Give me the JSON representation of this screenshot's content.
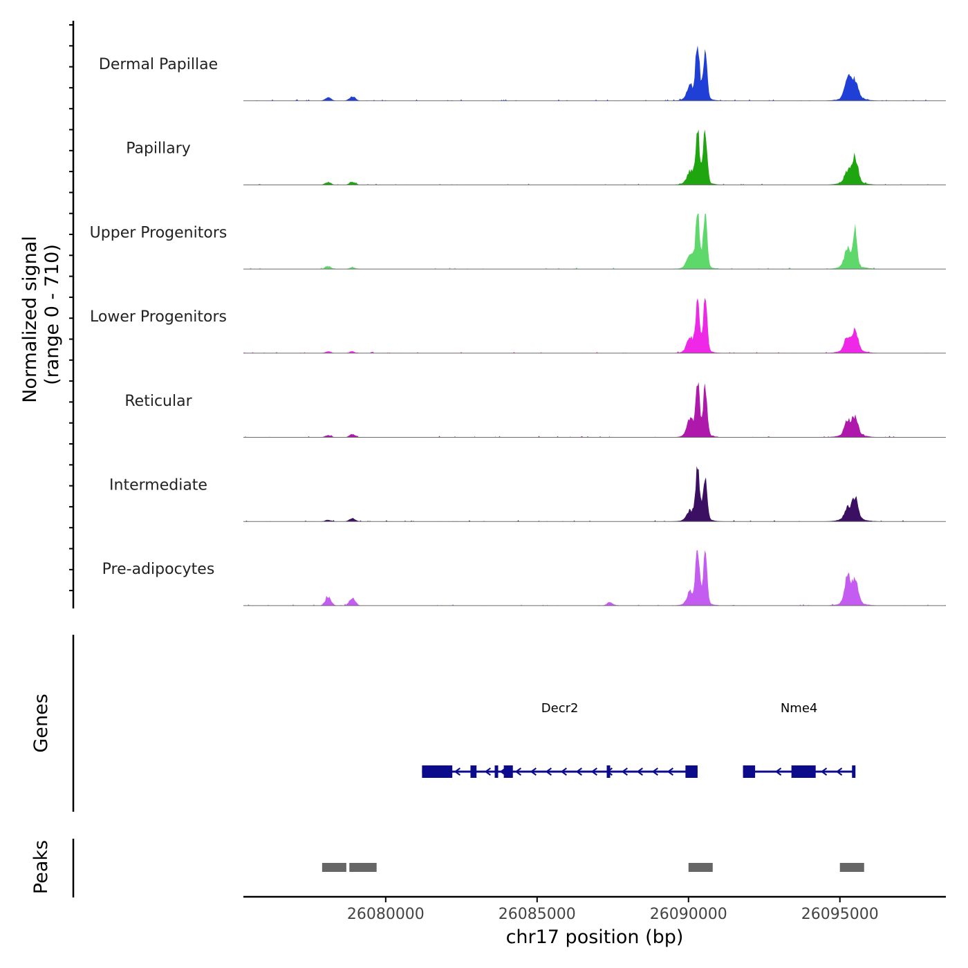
{
  "chart_data": {
    "type": "area",
    "title": "",
    "xlabel": "chr17 position (bp)",
    "ylabel": "Normalized signal",
    "ylabel_range": "(range 0 - 710)",
    "xlim": [
      26075300,
      26098500
    ],
    "ylim": [
      0,
      710
    ],
    "x_ticks": [
      26080000,
      26085000,
      26090000,
      26095000
    ],
    "x_tick_labels": [
      "26080000",
      "26085000",
      "26090000",
      "26095000"
    ],
    "tracks": [
      {
        "name": "Dermal Papillae",
        "color": "#1f3fd6",
        "peaks": [
          {
            "x": 26078100,
            "h": 0.06
          },
          {
            "x": 26078900,
            "h": 0.08
          },
          {
            "x": 26090050,
            "h": 0.22
          },
          {
            "x": 26090300,
            "h": 1.0
          },
          {
            "x": 26090550,
            "h": 0.8
          },
          {
            "x": 26095250,
            "h": 0.4
          },
          {
            "x": 26095500,
            "h": 0.32
          }
        ]
      },
      {
        "name": "Papillary",
        "color": "#1fa50f",
        "peaks": [
          {
            "x": 26078100,
            "h": 0.05
          },
          {
            "x": 26078900,
            "h": 0.05
          },
          {
            "x": 26090050,
            "h": 0.2
          },
          {
            "x": 26090300,
            "h": 0.95
          },
          {
            "x": 26090550,
            "h": 1.0
          },
          {
            "x": 26095250,
            "h": 0.2
          },
          {
            "x": 26095500,
            "h": 0.45
          }
        ]
      },
      {
        "name": "Upper Progenitors",
        "color": "#5ed86b",
        "peaks": [
          {
            "x": 26078100,
            "h": 0.05
          },
          {
            "x": 26078900,
            "h": 0.03
          },
          {
            "x": 26090050,
            "h": 0.22
          },
          {
            "x": 26090300,
            "h": 1.0
          },
          {
            "x": 26090550,
            "h": 1.0
          },
          {
            "x": 26095250,
            "h": 0.35
          },
          {
            "x": 26095500,
            "h": 0.68
          }
        ]
      },
      {
        "name": "Lower Progenitors",
        "color": "#ef27e6",
        "peaks": [
          {
            "x": 26078100,
            "h": 0.03
          },
          {
            "x": 26078900,
            "h": 0.03
          },
          {
            "x": 26090050,
            "h": 0.25
          },
          {
            "x": 26090300,
            "h": 0.95
          },
          {
            "x": 26090550,
            "h": 1.0
          },
          {
            "x": 26095250,
            "h": 0.24
          },
          {
            "x": 26095500,
            "h": 0.35
          }
        ]
      },
      {
        "name": "Reticular",
        "color": "#ae18ab",
        "peaks": [
          {
            "x": 26078100,
            "h": 0.04
          },
          {
            "x": 26078900,
            "h": 0.06
          },
          {
            "x": 26090050,
            "h": 0.3
          },
          {
            "x": 26090300,
            "h": 1.0
          },
          {
            "x": 26090550,
            "h": 0.9
          },
          {
            "x": 26095250,
            "h": 0.27
          },
          {
            "x": 26095500,
            "h": 0.3
          }
        ]
      },
      {
        "name": "Intermediate",
        "color": "#3b0f61",
        "peaks": [
          {
            "x": 26078100,
            "h": 0.03
          },
          {
            "x": 26078900,
            "h": 0.06
          },
          {
            "x": 26090050,
            "h": 0.15
          },
          {
            "x": 26090300,
            "h": 1.0
          },
          {
            "x": 26090550,
            "h": 0.76
          },
          {
            "x": 26095250,
            "h": 0.2
          },
          {
            "x": 26095500,
            "h": 0.38
          }
        ]
      },
      {
        "name": "Pre-adipocytes",
        "color": "#c55cf2",
        "peaks": [
          {
            "x": 26078100,
            "h": 0.16
          },
          {
            "x": 26078900,
            "h": 0.14
          },
          {
            "x": 26087400,
            "h": 0.06
          },
          {
            "x": 26090050,
            "h": 0.2
          },
          {
            "x": 26090300,
            "h": 1.0
          },
          {
            "x": 26090550,
            "h": 0.95
          },
          {
            "x": 26095250,
            "h": 0.49
          },
          {
            "x": 26095500,
            "h": 0.42
          }
        ]
      }
    ],
    "genes_track": {
      "label": "Genes",
      "color": "#0b0b8c",
      "genes": [
        {
          "name": "Decr2",
          "start": 26081200,
          "end": 26090300,
          "strand": "-",
          "exons": [
            [
              26081200,
              26082200
            ],
            [
              26082800,
              26083000
            ],
            [
              26083600,
              26083700
            ],
            [
              26083900,
              26084200
            ],
            [
              26087300,
              26087400
            ],
            [
              26089900,
              26090300
            ]
          ]
        },
        {
          "name": "Nme4",
          "start": 26091800,
          "end": 26095500,
          "strand": "-",
          "exons": [
            [
              26091800,
              26092200
            ],
            [
              26093400,
              26094200
            ],
            [
              26095400,
              26095500
            ]
          ]
        }
      ]
    },
    "peaks_track": {
      "label": "Peaks",
      "color": "#666666",
      "regions": [
        [
          26077900,
          26078700
        ],
        [
          26078800,
          26079700
        ],
        [
          26090000,
          26090800
        ],
        [
          26095000,
          26095800
        ]
      ]
    }
  }
}
